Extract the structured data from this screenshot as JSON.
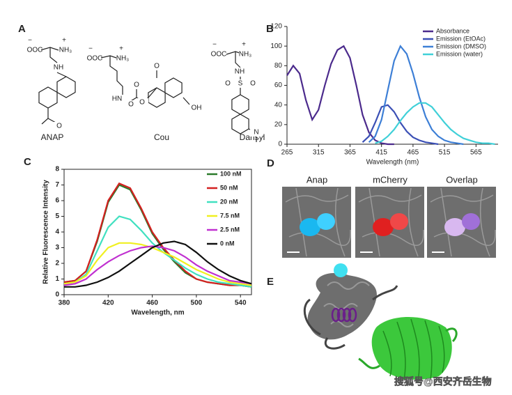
{
  "panel_labels": [
    "A",
    "B",
    "C",
    "D",
    "E"
  ],
  "structures": [
    {
      "name": "ANAP",
      "atoms": [
        "−",
        "OOC",
        "+",
        "NH₃",
        "NH",
        "O"
      ]
    },
    {
      "name": "Cou",
      "atoms": [
        "−",
        "OOC",
        "+",
        "NH₃",
        "HN",
        "O",
        "O",
        "O",
        "O",
        "OH"
      ]
    },
    {
      "name": "Dansyl",
      "atoms": [
        "−",
        "OOC",
        "+",
        "NH₃",
        "NH",
        "O",
        "S",
        "O",
        "N"
      ]
    }
  ],
  "chart_data": [
    {
      "type": "line",
      "xlabel": "Wavelength (nm)",
      "x": [
        265,
        275,
        285,
        295,
        305,
        315,
        325,
        335,
        345,
        355,
        365,
        375,
        385,
        395,
        405,
        415,
        425,
        435,
        445,
        455,
        465,
        475,
        485,
        495,
        505,
        515,
        525,
        535,
        545,
        555,
        565,
        575,
        585,
        595
      ],
      "xlim": [
        265,
        600
      ],
      "xticks": [
        265,
        315,
        365,
        415,
        465,
        515,
        565
      ],
      "ylim": [
        0,
        120
      ],
      "yticks": [
        0,
        20,
        40,
        60,
        80,
        100,
        120
      ],
      "legend": "upper right",
      "frame": false,
      "series": [
        {
          "name": "Absorbance",
          "color": "#4b2a8c",
          "values": [
            70,
            80,
            72,
            45,
            25,
            35,
            60,
            82,
            96,
            100,
            88,
            60,
            30,
            12,
            4,
            1,
            0,
            0,
            null,
            null,
            null,
            null,
            null,
            null,
            null,
            null,
            null,
            null,
            null,
            null,
            null,
            null,
            null,
            null
          ]
        },
        {
          "name": "Emission (EtOAc)",
          "color": "#3a4fb5",
          "values": [
            null,
            null,
            null,
            null,
            null,
            null,
            null,
            null,
            null,
            null,
            null,
            null,
            2,
            8,
            22,
            38,
            40,
            33,
            22,
            13,
            7,
            4,
            2,
            1,
            0,
            null,
            null,
            null,
            null,
            null,
            null,
            null,
            null,
            null
          ]
        },
        {
          "name": "Emission (DMSO)",
          "color": "#3d7fd6",
          "values": [
            null,
            null,
            null,
            null,
            null,
            null,
            null,
            null,
            null,
            null,
            null,
            null,
            null,
            2,
            8,
            25,
            55,
            85,
            100,
            92,
            72,
            48,
            28,
            15,
            8,
            4,
            2,
            1,
            0,
            null,
            null,
            null,
            null,
            null
          ]
        },
        {
          "name": "Emission (water)",
          "color": "#40d0d8",
          "values": [
            null,
            null,
            null,
            null,
            null,
            null,
            null,
            null,
            null,
            null,
            null,
            null,
            null,
            null,
            1,
            3,
            8,
            15,
            24,
            32,
            38,
            42,
            42,
            38,
            30,
            22,
            15,
            10,
            6,
            4,
            2,
            1,
            1,
            0
          ]
        }
      ]
    },
    {
      "type": "line",
      "xlabel": "Wavelength, nm",
      "ylabel": "Relative Fluorescence Intensity",
      "x": [
        380,
        390,
        400,
        410,
        420,
        430,
        440,
        450,
        460,
        470,
        480,
        490,
        500,
        510,
        520,
        530,
        540,
        550
      ],
      "xlim": [
        380,
        550
      ],
      "xticks": [
        380,
        420,
        460,
        500,
        540
      ],
      "ylim": [
        0,
        8
      ],
      "yticks": [
        0,
        1,
        2,
        3,
        4,
        5,
        6,
        7,
        8
      ],
      "legend": "upper right",
      "frame": true,
      "series": [
        {
          "name": "100 nM",
          "color": "#2a7a2a",
          "values": [
            0.8,
            0.9,
            1.5,
            3.4,
            5.9,
            7.0,
            6.7,
            5.4,
            3.9,
            2.9,
            2.1,
            1.4,
            1.0,
            0.8,
            0.7,
            0.6,
            0.6,
            0.5
          ]
        },
        {
          "name": "50 nM",
          "color": "#d42020",
          "values": [
            0.8,
            0.9,
            1.5,
            3.5,
            6.0,
            7.1,
            6.8,
            5.5,
            4.0,
            3.0,
            2.2,
            1.5,
            1.0,
            0.8,
            0.7,
            0.6,
            0.6,
            0.5
          ]
        },
        {
          "name": "20 nM",
          "color": "#40e0c0",
          "values": [
            0.7,
            0.8,
            1.3,
            2.8,
            4.3,
            5.0,
            4.8,
            4.1,
            3.3,
            2.7,
            2.2,
            1.7,
            1.3,
            1.0,
            0.8,
            0.7,
            0.6,
            0.5
          ]
        },
        {
          "name": "7.5 nM",
          "color": "#f0f020",
          "values": [
            0.7,
            0.8,
            1.2,
            2.2,
            3.0,
            3.3,
            3.3,
            3.2,
            3.0,
            2.7,
            2.4,
            2.0,
            1.6,
            1.3,
            1.0,
            0.8,
            0.7,
            0.6
          ]
        },
        {
          "name": "2.5 nM",
          "color": "#c030d0",
          "values": [
            0.6,
            0.7,
            1.0,
            1.6,
            2.1,
            2.5,
            2.8,
            3.0,
            3.1,
            3.0,
            2.8,
            2.4,
            1.9,
            1.5,
            1.2,
            0.9,
            0.8,
            0.7
          ]
        },
        {
          "name": "0 nM",
          "color": "#101010",
          "values": [
            0.5,
            0.5,
            0.6,
            0.8,
            1.1,
            1.5,
            2.0,
            2.5,
            3.0,
            3.3,
            3.4,
            3.2,
            2.7,
            2.1,
            1.6,
            1.2,
            0.9,
            0.7
          ]
        }
      ]
    }
  ],
  "microscopy": {
    "panels": [
      "Anap",
      "mCherry",
      "Overlap"
    ]
  },
  "watermark": "搜狐号@西安齐岳生物"
}
